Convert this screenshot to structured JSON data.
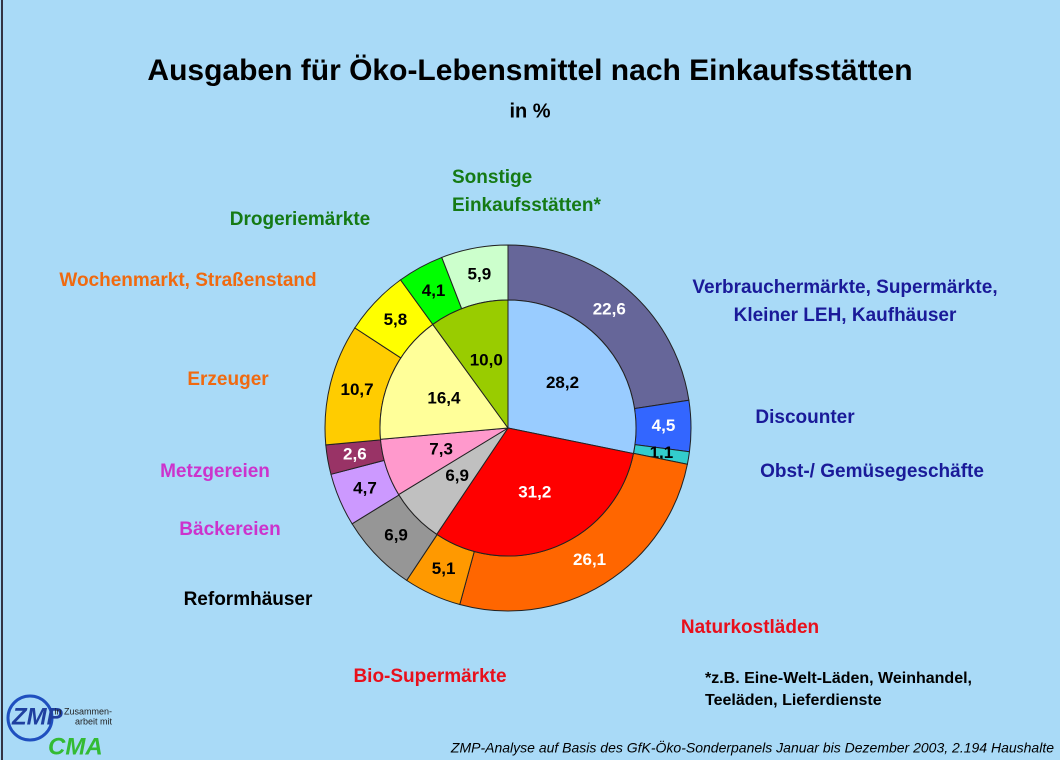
{
  "chart_data": {
    "type": "nested-pie",
    "title": "Ausgaben für Öko-Lebensmittel nach Einkaufsstätten",
    "subtitle": "in %",
    "inner": {
      "values": [
        28.2,
        31.2,
        6.9,
        7.3,
        16.4,
        10.0
      ],
      "value_labels": [
        "28,2",
        "31,2",
        "6,9",
        "7,3",
        "16,4",
        "10,0"
      ],
      "colors": [
        "#99ccff",
        "#ff0000",
        "#c0c0c0",
        "#ff99cc",
        "#ffff99",
        "#99cc00"
      ]
    },
    "outer": {
      "categories": [
        [
          "Verbrauchermärkte, Supermärkte,",
          "Kleiner LEH, Kaufhäuser"
        ],
        [
          "Discounter"
        ],
        [
          "Obst-/ Gemüsegeschäfte"
        ],
        [
          "Naturkostläden"
        ],
        [
          "Bio-Supermärkte"
        ],
        [
          "Reformhäuser"
        ],
        [
          "Bäckereien"
        ],
        [
          "Metzgereien"
        ],
        [
          "Erzeuger"
        ],
        [
          "Wochenmarkt, Straßenstand"
        ],
        [
          "Drogeriemärkte"
        ],
        [
          "Sonstige",
          "Einkaufsstätten*"
        ]
      ],
      "values": [
        22.6,
        4.5,
        1.1,
        26.1,
        5.1,
        6.9,
        4.7,
        2.6,
        10.7,
        5.8,
        4.1,
        5.9
      ],
      "value_labels": [
        "22,6",
        "4,5",
        "1,1",
        "26,1",
        "5,1",
        "6,9",
        "4,7",
        "2,6",
        "10,7",
        "5,8",
        "4,1",
        "5,9"
      ],
      "colors": [
        "#666699",
        "#3366ff",
        "#33cccc",
        "#ff6600",
        "#ff9900",
        "#969696",
        "#cc99ff",
        "#993366",
        "#ffcc00",
        "#ffff00",
        "#00ff00",
        "#ccffcc"
      ],
      "label_colors": [
        "#1a1a99",
        "#1a1a99",
        "#1a1a99",
        "#e8101c",
        "#e8101c",
        "#000000",
        "#cc33cc",
        "#cc33cc",
        "#f06a10",
        "#f06a10",
        "#157a15",
        "#157a15"
      ]
    },
    "footnote": [
      "*z.B. Eine-Welt-Läden, Weinhandel,",
      "Teeläden, Lieferdienste"
    ],
    "source": "ZMP-Analyse auf Basis des GfK-Öko-Sonderpanels Januar bis Dezember 2003, 2.194 Haushalte",
    "logo": {
      "top": "ZMP",
      "note": [
        "in Zusammen-",
        "arbeit mit"
      ],
      "bottom": "CMA"
    }
  }
}
